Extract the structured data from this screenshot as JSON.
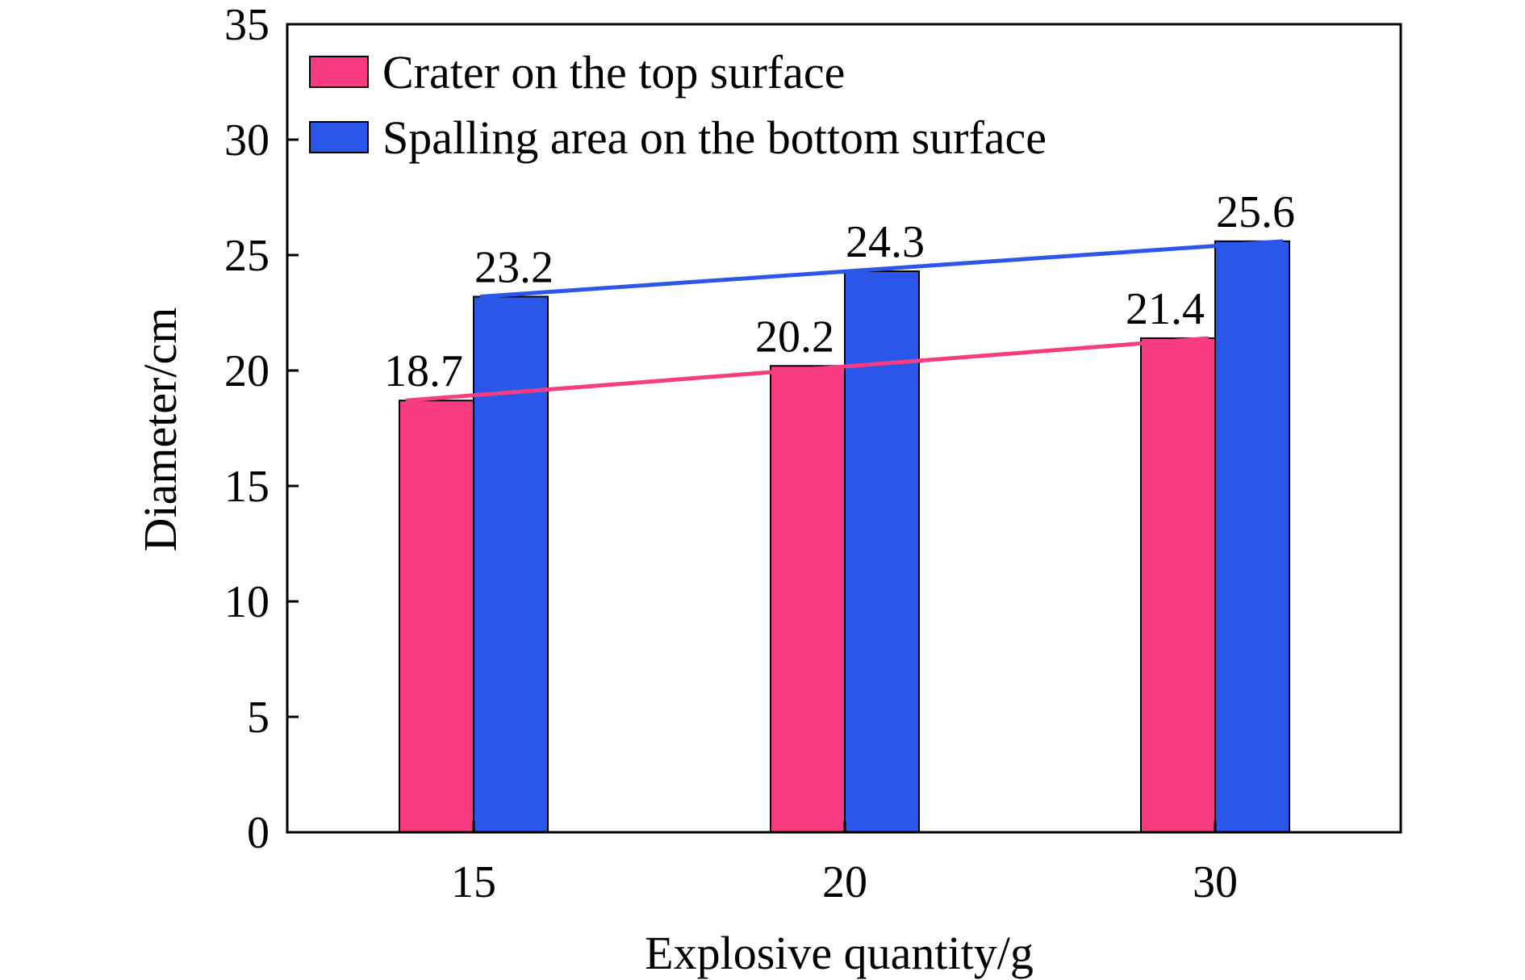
{
  "chart_data": {
    "type": "bar",
    "categories": [
      "15",
      "20",
      "30"
    ],
    "series": [
      {
        "name": "Crater on the top surface",
        "values": [
          18.7,
          20.2,
          21.4
        ],
        "color": "#f73c82"
      },
      {
        "name": "Spalling area on the bottom surface",
        "values": [
          23.2,
          24.3,
          25.6
        ],
        "color": "#2a56ea"
      }
    ],
    "data_labels": [
      [
        "18.7",
        "20.2",
        "21.4"
      ],
      [
        "23.2",
        "24.3",
        "25.6"
      ]
    ],
    "xlabel": "Explosive quantity/g",
    "ylabel": "Diameter/cm",
    "ylim": [
      0,
      35
    ],
    "yticks": [
      0,
      5,
      10,
      15,
      20,
      25,
      30,
      35
    ],
    "trend_lines": true,
    "grid": false,
    "legend_position": "top-left"
  }
}
